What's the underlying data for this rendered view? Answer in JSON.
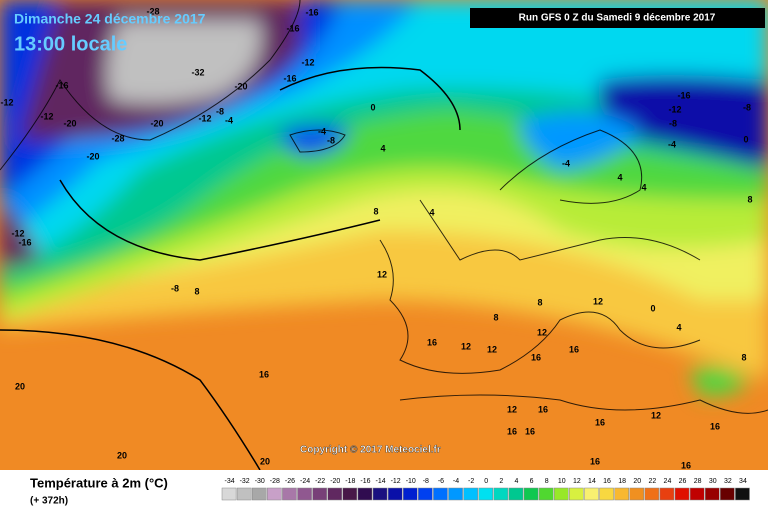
{
  "header": {
    "date": "Dimanche 24 décembre 2017",
    "time": "13:00 locale",
    "run": "Run GFS 0 Z du Samedi 9 décembre 2017"
  },
  "copyright": "Copyright © 2017 Meteociel.fr",
  "legend": {
    "title": "Température à 2m (°C)",
    "lead_time": "(+ 372h)",
    "ticks": [
      -34,
      -32,
      -30,
      -28,
      -26,
      -24,
      -22,
      -20,
      -18,
      -16,
      -14,
      -12,
      -10,
      -8,
      -6,
      -4,
      -2,
      0,
      2,
      4,
      6,
      8,
      10,
      12,
      14,
      16,
      18,
      20,
      22,
      24,
      26,
      28,
      30,
      32,
      34
    ],
    "colors": [
      "#d8d8d8",
      "#c0c0c0",
      "#a8a8a8",
      "#c8a0c8",
      "#a878a8",
      "#905890",
      "#784078",
      "#602860",
      "#481848",
      "#300c50",
      "#1a1080",
      "#0a10a8",
      "#0020d0",
      "#0040f0",
      "#0070ff",
      "#0098ff",
      "#00c0ff",
      "#00e0f0",
      "#00d8c0",
      "#00c890",
      "#10c850",
      "#50d830",
      "#98e828",
      "#d8f040",
      "#f8f070",
      "#f8d840",
      "#f8b830",
      "#f09020",
      "#f07018",
      "#e84010",
      "#e01000",
      "#c00000",
      "#980000",
      "#680000",
      "#101010"
    ]
  },
  "map": {
    "contour_labels": [
      "-16",
      "-16",
      "-12",
      "-16",
      "-28",
      "-32",
      "-20",
      "-8",
      "-12",
      "-4",
      "-20",
      "-28",
      "-20",
      "-16",
      "-12",
      "-12",
      "-20",
      "-12",
      "-16",
      "0",
      "-4",
      "-8",
      "4",
      "8",
      "-8",
      "8",
      "12",
      "20",
      "16",
      "20",
      "20",
      "-16",
      "-12",
      "-8",
      "-8",
      "0",
      "-4",
      "-4",
      "4",
      "4",
      "8",
      "12",
      "12",
      "12",
      "12",
      "16",
      "16",
      "16",
      "12",
      "16",
      "16",
      "16",
      "16",
      "16",
      "16",
      "16",
      "12",
      "8",
      "8",
      "4",
      "8",
      "0",
      "4"
    ]
  }
}
